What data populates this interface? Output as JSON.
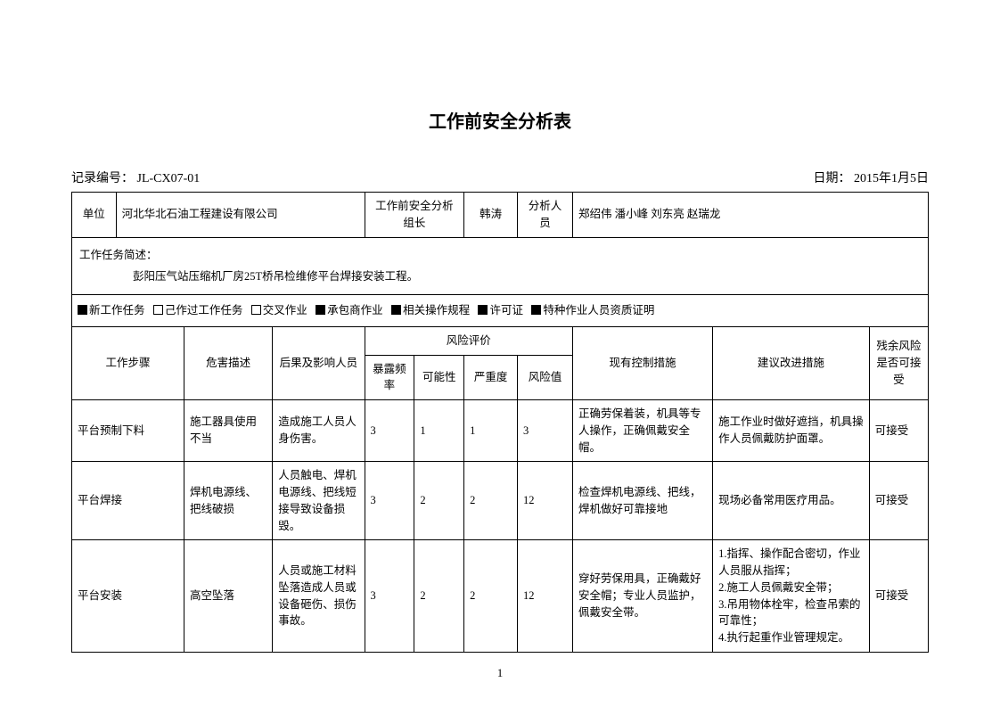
{
  "title": "工作前安全分析表",
  "record_label": "记录编号：",
  "record_no": "JL-CX07-01",
  "date_label": "日期：",
  "date": "2015年1月5日",
  "info": {
    "unit_label": "单位",
    "unit": "河北华北石油工程建设有限公司",
    "leader_label": "工作前安全分析组长",
    "leader": "韩涛",
    "analysts_label": "分析人员",
    "analysts": "郑绍伟 潘小峰 刘东亮  赵瑞龙"
  },
  "task_desc_label": "工作任务简述：",
  "task_desc": "彭阳压气站压缩机厂房25T桥吊检维修平台焊接安装工程。",
  "checkboxes": [
    {
      "label": "新工作任务",
      "checked": true
    },
    {
      "label": "己作过工作任务",
      "checked": false
    },
    {
      "label": "交叉作业",
      "checked": false
    },
    {
      "label": "承包商作业",
      "checked": true
    },
    {
      "label": "相关操作规程",
      "checked": true
    },
    {
      "label": "许可证",
      "checked": true
    },
    {
      "label": "特种作业人员资质证明",
      "checked": true
    }
  ],
  "headers": {
    "step": "工作步骤",
    "hazard": "危害描述",
    "consequence": "后果及影响人员",
    "risk_eval": "风险评价",
    "exposure": "暴露频率",
    "likelihood": "可能性",
    "severity": "严重度",
    "risk_value": "风险值",
    "control": "现有控制措施",
    "improve": "建议改进措施",
    "residual": "残余风险是否可接受"
  },
  "rows": [
    {
      "step": "平台预制下料",
      "hazard": "施工器具使用不当",
      "consequence": "造成施工人员人身伤害。",
      "exposure": "3",
      "likelihood": "1",
      "severity": "1",
      "risk_value": "3",
      "control": "正确劳保着装，机具等专人操作，正确佩戴安全帽。",
      "improve": "施工作业时做好遮挡，机具操作人员佩戴防护面罩。",
      "residual": "可接受"
    },
    {
      "step": "平台焊接",
      "hazard": "焊机电源线、把线破损",
      "consequence": "人员触电、焊机电源线、把线短接导致设备损毁。",
      "exposure": "3",
      "likelihood": "2",
      "severity": "2",
      "risk_value": "12",
      "control": "检查焊机电源线、把线，焊机做好可靠接地",
      "improve": "现场必备常用医疗用品。",
      "residual": "可接受"
    },
    {
      "step": "平台安装",
      "hazard": "高空坠落",
      "consequence": "人员或施工材料坠落造成人员或设备砸伤、损伤事故。",
      "exposure": "3",
      "likelihood": "2",
      "severity": "2",
      "risk_value": "12",
      "control": "穿好劳保用具，正确戴好安全帽；专业人员监护，佩戴安全带。",
      "improve": "1.指挥、操作配合密切，作业人员服从指挥；\n2.施工人员佩戴安全带；\n3.吊用物体栓牢，检查吊索的可靠性；\n4.执行起重作业管理规定。",
      "residual": "可接受"
    }
  ],
  "page_num": "1"
}
